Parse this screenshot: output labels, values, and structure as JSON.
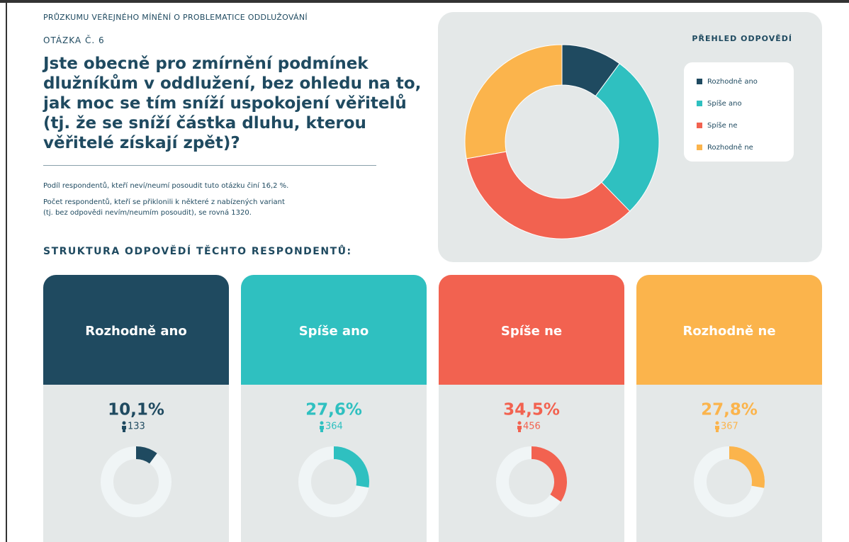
{
  "header": "PRŮZKUMU VEŘEJNÉHO MÍNĚNÍ O PROBLEMATICE ODDLUŽOVÁNÍ",
  "question_label": "OTÁZKA Č. 6",
  "question": [
    "Jste obecně pro zmírnění podmínek",
    "dlužníkům v oddlužení, bez ohledu na to,",
    "jak moc se tím sníží uspokojení věřitelů",
    "(tj. že se sníží částka dluhu, kterou",
    "věřitelé získají zpět)?"
  ],
  "notes": [
    "Podíl respondentů, kteří neví/neumí posoudit tuto otázku činí 16,2 %.",
    "Počet respondentů, kteří se přiklonili k některé z nabízených variant",
    "(tj. bez odpovědi nevím/neumím posoudit), se rovná 1320."
  ],
  "section_title": "STRUKTURA ODPOVĚDÍ TĚCHTO RESPONDENTŮ:",
  "chart_data": {
    "type": "donut",
    "title": "PŘEHLED ODPOVĚDÍ",
    "categories": [
      "Rozhodně ano",
      "Spíše ano",
      "Spíše ne",
      "Rozhodně ne"
    ],
    "values": [
      10.1,
      27.6,
      34.5,
      27.8
    ],
    "value_labels": [
      "10,1%",
      "27,6%",
      "34,5%",
      "27,8%"
    ],
    "counts": [
      133,
      364,
      456,
      367
    ],
    "colors": [
      "#1f4a60",
      "#2fc0c0",
      "#f26250",
      "#fbb44c"
    ]
  }
}
